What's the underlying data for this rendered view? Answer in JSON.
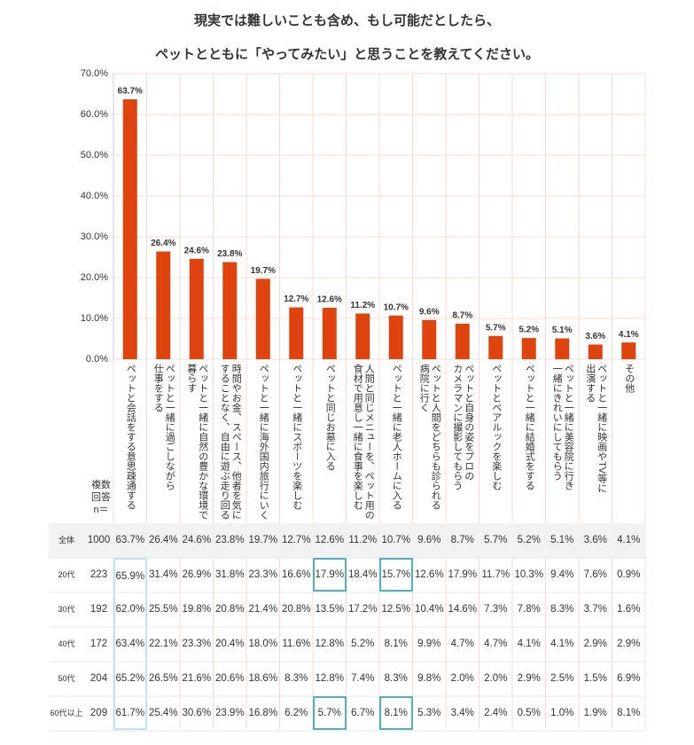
{
  "chart_data": {
    "type": "bar",
    "title": [
      "現実では難しいことも含め、もし可能だとしたら、",
      "ペットとともに「やってみたい」と思うことを教えてください。"
    ],
    "categories": [
      "ペットと会話をする意思疎通する",
      "ペットと一緒に過ごしながら\n仕事をする",
      "ペットと一緒に自然の豊かな環境で\n暮らす",
      "時間やお金、スペース、他者を気に\nすることなく、自由に遊ぶ走り回る",
      "ペットと一緒に海外国内旅行にいく",
      "ペットと一緒にスポーツを楽しむ",
      "ペットと同じお墓に入る",
      "人間と同じメニューを、ペット用の\n食材で用意し一緒に食事を楽しむ",
      "ペットと一緒に老人ホームに入る",
      "ペットと人間をどちらも診られる\n病院に行く",
      "ペットと自身の姿をプロの\nカメラマンに撮影してもらう",
      "ペットとペアルックを楽しむ",
      "ペットと一緒に結婚式をする",
      "ペットと一緒に美容院に行き\n一緒にきれいにしてもらう",
      "ペットと一緒に映画やTV等に\n出演する",
      "その他"
    ],
    "values": [
      63.7,
      26.4,
      24.6,
      23.8,
      19.7,
      12.7,
      12.6,
      11.2,
      10.7,
      9.6,
      8.7,
      5.7,
      5.2,
      5.1,
      3.6,
      4.1
    ],
    "value_labels": [
      "63.7%",
      "26.4%",
      "24.6%",
      "23.8%",
      "19.7%",
      "12.7%",
      "12.6%",
      "11.2%",
      "10.7%",
      "9.6%",
      "8.7%",
      "5.7%",
      "5.2%",
      "5.1%",
      "3.6%",
      "4.1%"
    ],
    "color": "#e0440e",
    "ylim": [
      0,
      70
    ],
    "yticks": [
      {
        "value": 0,
        "label": "0.0%"
      },
      {
        "value": 10,
        "label": "10.0%"
      },
      {
        "value": 20,
        "label": "20.0%"
      },
      {
        "value": 30,
        "label": "30.0%"
      },
      {
        "value": 40,
        "label": "40.0%"
      },
      {
        "value": 50,
        "label": "50.0%"
      },
      {
        "value": 60,
        "label": "60.0%"
      },
      {
        "value": 70,
        "label": "70.0%"
      }
    ],
    "grid": true
  },
  "table": {
    "header": "複数回答\nn＝",
    "rows": [
      {
        "label": "全体",
        "n": "1000",
        "values": [
          "63.7%",
          "26.4%",
          "24.6%",
          "23.8%",
          "19.7%",
          "12.7%",
          "12.6%",
          "11.2%",
          "10.7%",
          "9.6%",
          "8.7%",
          "5.7%",
          "5.2%",
          "5.1%",
          "3.6%",
          "4.1%"
        ]
      },
      {
        "label": "20代",
        "n": "223",
        "values": [
          "65.9%",
          "31.4%",
          "26.9%",
          "31.8%",
          "23.3%",
          "16.6%",
          "17.9%",
          "18.4%",
          "15.7%",
          "12.6%",
          "17.9%",
          "11.7%",
          "10.3%",
          "9.4%",
          "7.6%",
          "0.9%"
        ]
      },
      {
        "label": "30代",
        "n": "192",
        "values": [
          "62.0%",
          "25.5%",
          "19.8%",
          "20.8%",
          "21.4%",
          "20.8%",
          "13.5%",
          "17.2%",
          "12.5%",
          "10.4%",
          "14.6%",
          "7.3%",
          "7.8%",
          "8.3%",
          "3.7%",
          "1.6%"
        ]
      },
      {
        "label": "40代",
        "n": "172",
        "values": [
          "63.4%",
          "22.1%",
          "23.3%",
          "20.4%",
          "18.0%",
          "11.6%",
          "12.8%",
          "5.2%",
          "8.1%",
          "9.9%",
          "4.7%",
          "4.7%",
          "4.1%",
          "4.1%",
          "2.9%",
          "2.9%"
        ]
      },
      {
        "label": "50代",
        "n": "204",
        "values": [
          "65.2%",
          "26.5%",
          "21.6%",
          "20.6%",
          "18.6%",
          "8.3%",
          "12.8%",
          "7.4%",
          "8.3%",
          "9.8%",
          "2.0%",
          "2.0%",
          "2.9%",
          "2.5%",
          "1.5%",
          "6.9%"
        ]
      },
      {
        "label": "60代以上",
        "n": "209",
        "values": [
          "61.7%",
          "25.4%",
          "30.6%",
          "23.9%",
          "16.8%",
          "6.2%",
          "5.7%",
          "6.7%",
          "8.1%",
          "5.3%",
          "3.4%",
          "2.4%",
          "0.5%",
          "1.0%",
          "1.9%",
          "8.1%"
        ]
      }
    ]
  }
}
